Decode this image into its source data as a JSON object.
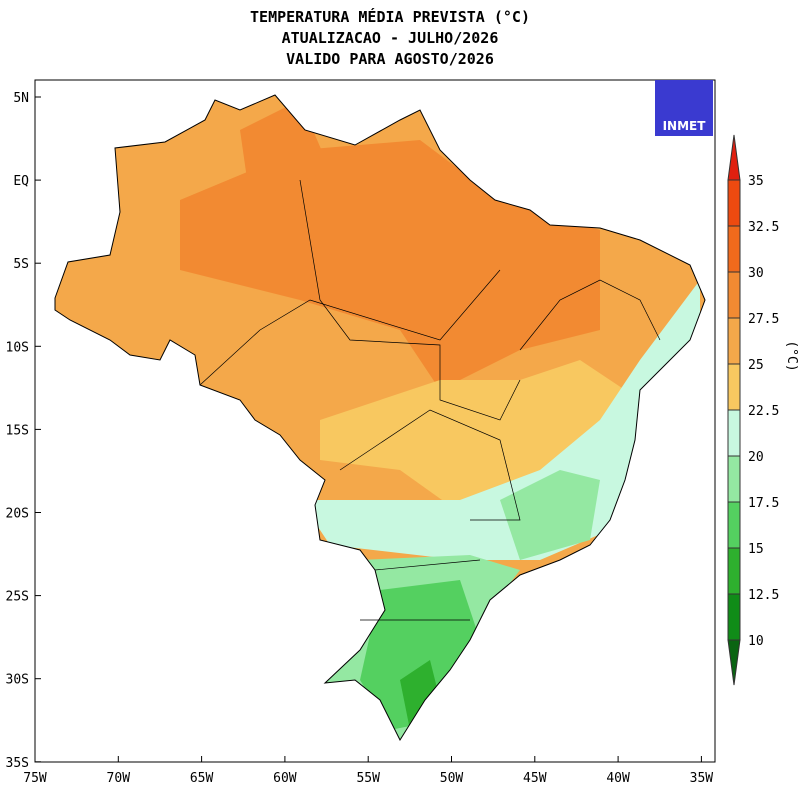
{
  "header": {
    "title_lines": [
      "TEMPERATURA MÉDIA PREVISTA (°C)",
      "ATUALIZACAO - JULHO/2026",
      "VALIDO PARA AGOSTO/2026"
    ]
  },
  "map": {
    "lat_labels": [
      "5N",
      "EQ",
      "5S",
      "10S",
      "15S",
      "20S",
      "25S",
      "30S",
      "35S"
    ],
    "lon_labels": [
      "75W",
      "70W",
      "65W",
      "60W",
      "55W",
      "50W",
      "45W",
      "40W",
      "35W"
    ]
  },
  "logo": {
    "text": "INMET"
  },
  "colorbar": {
    "unit": "(°C)",
    "levels": [
      10,
      12.5,
      15,
      17.5,
      20,
      22.5,
      25,
      27.5,
      30,
      32.5,
      35
    ],
    "colors": [
      "#0a6412",
      "#108c18",
      "#2eb02e",
      "#54d060",
      "#94e8a2",
      "#c8f8e0",
      "#f8c860",
      "#f4a84a",
      "#f28a32",
      "#f06a1c",
      "#ee4a10",
      "#e02010"
    ]
  }
}
